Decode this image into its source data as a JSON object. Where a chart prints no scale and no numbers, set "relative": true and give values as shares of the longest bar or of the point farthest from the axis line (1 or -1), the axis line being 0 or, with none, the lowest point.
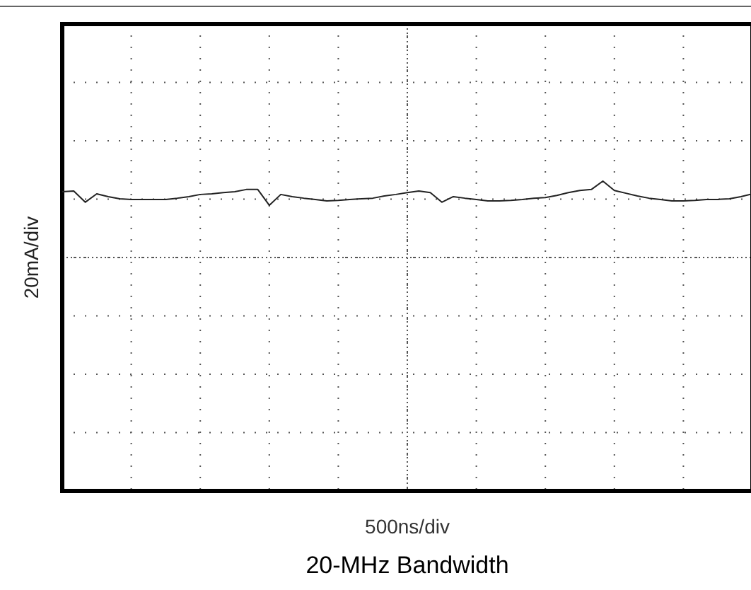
{
  "chart_data": {
    "type": "line",
    "title": "20-MHz Bandwidth",
    "xlabel": "500ns/div",
    "ylabel": "20mA/div",
    "relative": true,
    "grid": true,
    "categories": [
      null,
      null,
      null,
      null,
      null,
      null,
      null,
      null,
      null,
      null,
      null,
      null,
      null,
      null,
      null,
      null,
      null,
      null,
      null,
      null,
      null,
      null,
      null,
      null,
      null,
      null,
      null,
      null,
      null,
      null,
      null,
      null,
      null,
      null,
      null,
      null,
      null,
      null,
      null,
      null,
      null,
      null,
      null,
      null,
      null,
      null,
      null,
      null,
      null,
      null,
      null,
      null,
      null,
      null,
      null,
      null,
      null,
      null,
      null,
      null,
      null
    ],
    "series": [
      {
        "color": "#222222",
        "values": [
          0.966,
          0.968,
          0.932,
          0.959,
          0.95,
          0.943,
          0.941,
          0.941,
          0.941,
          0.941,
          0.945,
          0.95,
          0.957,
          0.959,
          0.963,
          0.966,
          0.973,
          0.973,
          0.922,
          0.957,
          0.95,
          0.945,
          0.941,
          0.936,
          0.938,
          0.941,
          0.943,
          0.945,
          0.952,
          0.957,
          0.963,
          0.968,
          0.963,
          0.932,
          0.95,
          0.945,
          0.941,
          0.936,
          0.936,
          0.938,
          0.941,
          0.945,
          0.947,
          0.954,
          0.963,
          0.97,
          0.973,
          1,
          0.97,
          0.961,
          0.952,
          0.945,
          0.941,
          0.936,
          0.936,
          0.938,
          0.941,
          0.941,
          0.943,
          0.95,
          0.959
        ]
      }
    ]
  }
}
